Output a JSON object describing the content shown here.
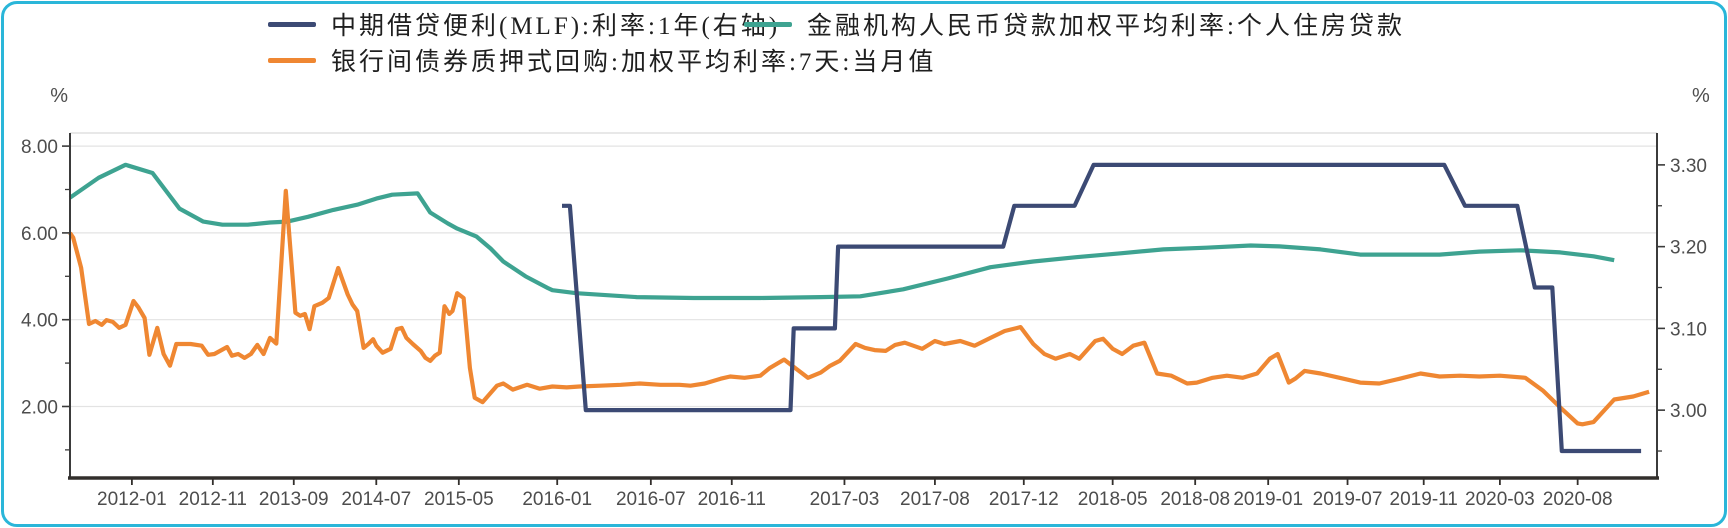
{
  "frame": {
    "border_color": "#2ab6d9",
    "background": "#ffffff"
  },
  "legend": {
    "items": [
      {
        "id": "mlf",
        "label": "中期借贷便利(MLF):利率:1年(右轴)",
        "color": "#3c4a74"
      },
      {
        "id": "mortgage",
        "label": "金融机构人民币贷款加权平均利率:个人住房贷款",
        "color": "#3ea391"
      },
      {
        "id": "repo",
        "label": "银行间债券质押式回购:加权平均利率:7天:当月值",
        "color": "#ef8732"
      }
    ]
  },
  "chart_data": {
    "type": "line",
    "title": "",
    "grid": true,
    "legend_position": "top",
    "left_axis": {
      "unit": "%",
      "tick_labels": [
        "8.00",
        "6.00",
        "4.00",
        "2.00"
      ],
      "tick_values": [
        8,
        6,
        4,
        2
      ],
      "minor_tick_values": [
        7,
        5,
        3,
        1
      ],
      "range_top_to_bottom": [
        8.302,
        0.352
      ]
    },
    "right_axis": {
      "unit": "%",
      "tick_labels": [
        "3.30",
        "3.20",
        "3.10",
        "3.00"
      ],
      "tick_values": [
        3.3,
        3.2,
        3.1,
        3.0
      ],
      "minor_tick_values": [
        3.25,
        3.15,
        3.05,
        2.95
      ],
      "range_top_to_bottom": [
        3.339,
        2.917
      ]
    },
    "x_axis": {
      "ticks": [
        {
          "label": "2012-01",
          "pos": 0.039
        },
        {
          "label": "2012-11",
          "pos": 0.09
        },
        {
          "label": "2013-09",
          "pos": 0.141
        },
        {
          "label": "2014-07",
          "pos": 0.193
        },
        {
          "label": "2015-05",
          "pos": 0.245
        },
        {
          "label": "2016-01",
          "pos": 0.307
        },
        {
          "label": "2016-07",
          "pos": 0.366
        },
        {
          "label": "2016-11",
          "pos": 0.417
        },
        {
          "label": "2017-03",
          "pos": 0.488
        },
        {
          "label": "2017-08",
          "pos": 0.545
        },
        {
          "label": "2017-12",
          "pos": 0.601
        },
        {
          "label": "2018-05",
          "pos": 0.657
        },
        {
          "label": "2018-08",
          "pos": 0.709
        },
        {
          "label": "2019-01",
          "pos": 0.755
        },
        {
          "label": "2019-07",
          "pos": 0.805
        },
        {
          "label": "2019-11",
          "pos": 0.853
        },
        {
          "label": "2020-03",
          "pos": 0.901
        },
        {
          "label": "2020-08",
          "pos": 0.95
        }
      ]
    },
    "series": [
      {
        "name": "金融机构人民币贷款加权平均利率:个人住房贷款",
        "axis": "left",
        "color": "#3ea391",
        "points": [
          [
            0.0,
            6.81
          ],
          [
            0.018,
            7.27
          ],
          [
            0.035,
            7.57
          ],
          [
            0.052,
            7.38
          ],
          [
            0.069,
            6.56
          ],
          [
            0.084,
            6.26
          ],
          [
            0.096,
            6.19
          ],
          [
            0.112,
            6.19
          ],
          [
            0.126,
            6.24
          ],
          [
            0.137,
            6.26
          ],
          [
            0.15,
            6.37
          ],
          [
            0.166,
            6.53
          ],
          [
            0.181,
            6.65
          ],
          [
            0.193,
            6.79
          ],
          [
            0.203,
            6.88
          ],
          [
            0.219,
            6.91
          ],
          [
            0.227,
            6.47
          ],
          [
            0.238,
            6.22
          ],
          [
            0.244,
            6.1
          ],
          [
            0.256,
            5.92
          ],
          [
            0.265,
            5.64
          ],
          [
            0.273,
            5.34
          ],
          [
            0.287,
            5.0
          ],
          [
            0.301,
            4.73
          ],
          [
            0.304,
            4.68
          ],
          [
            0.319,
            4.61
          ],
          [
            0.357,
            4.52
          ],
          [
            0.393,
            4.5
          ],
          [
            0.435,
            4.5
          ],
          [
            0.473,
            4.52
          ],
          [
            0.498,
            4.54
          ],
          [
            0.525,
            4.7
          ],
          [
            0.553,
            4.95
          ],
          [
            0.58,
            5.21
          ],
          [
            0.607,
            5.34
          ],
          [
            0.634,
            5.44
          ],
          [
            0.662,
            5.53
          ],
          [
            0.689,
            5.62
          ],
          [
            0.716,
            5.66
          ],
          [
            0.744,
            5.71
          ],
          [
            0.762,
            5.69
          ],
          [
            0.788,
            5.62
          ],
          [
            0.813,
            5.5
          ],
          [
            0.838,
            5.5
          ],
          [
            0.863,
            5.5
          ],
          [
            0.888,
            5.57
          ],
          [
            0.914,
            5.6
          ],
          [
            0.939,
            5.55
          ],
          [
            0.96,
            5.46
          ],
          [
            0.973,
            5.37
          ]
        ]
      },
      {
        "name": "银行间债券质押式回购:加权平均利率:7天:当月值",
        "axis": "left",
        "color": "#ef8732",
        "points": [
          [
            0.0,
            6.0
          ],
          [
            0.002,
            5.89
          ],
          [
            0.007,
            5.2
          ],
          [
            0.012,
            3.9
          ],
          [
            0.016,
            3.97
          ],
          [
            0.02,
            3.88
          ],
          [
            0.023,
            3.99
          ],
          [
            0.027,
            3.95
          ],
          [
            0.031,
            3.81
          ],
          [
            0.035,
            3.88
          ],
          [
            0.04,
            4.43
          ],
          [
            0.043,
            4.29
          ],
          [
            0.047,
            4.04
          ],
          [
            0.05,
            3.19
          ],
          [
            0.055,
            3.81
          ],
          [
            0.059,
            3.21
          ],
          [
            0.063,
            2.94
          ],
          [
            0.067,
            3.44
          ],
          [
            0.076,
            3.44
          ],
          [
            0.083,
            3.4
          ],
          [
            0.087,
            3.19
          ],
          [
            0.091,
            3.21
          ],
          [
            0.099,
            3.37
          ],
          [
            0.102,
            3.17
          ],
          [
            0.106,
            3.21
          ],
          [
            0.11,
            3.12
          ],
          [
            0.114,
            3.21
          ],
          [
            0.118,
            3.42
          ],
          [
            0.122,
            3.21
          ],
          [
            0.126,
            3.58
          ],
          [
            0.13,
            3.45
          ],
          [
            0.136,
            6.97
          ],
          [
            0.142,
            4.16
          ],
          [
            0.145,
            4.09
          ],
          [
            0.148,
            4.13
          ],
          [
            0.151,
            3.78
          ],
          [
            0.154,
            4.31
          ],
          [
            0.159,
            4.39
          ],
          [
            0.163,
            4.5
          ],
          [
            0.169,
            5.19
          ],
          [
            0.175,
            4.58
          ],
          [
            0.178,
            4.35
          ],
          [
            0.181,
            4.2
          ],
          [
            0.185,
            3.35
          ],
          [
            0.188,
            3.44
          ],
          [
            0.191,
            3.55
          ],
          [
            0.193,
            3.4
          ],
          [
            0.197,
            3.24
          ],
          [
            0.202,
            3.33
          ],
          [
            0.206,
            3.78
          ],
          [
            0.209,
            3.81
          ],
          [
            0.212,
            3.58
          ],
          [
            0.216,
            3.44
          ],
          [
            0.221,
            3.28
          ],
          [
            0.224,
            3.12
          ],
          [
            0.227,
            3.05
          ],
          [
            0.23,
            3.17
          ],
          [
            0.233,
            3.24
          ],
          [
            0.236,
            4.31
          ],
          [
            0.239,
            4.13
          ],
          [
            0.241,
            4.2
          ],
          [
            0.244,
            4.61
          ],
          [
            0.248,
            4.5
          ],
          [
            0.252,
            2.89
          ],
          [
            0.255,
            2.2
          ],
          [
            0.26,
            2.1
          ],
          [
            0.269,
            2.48
          ],
          [
            0.273,
            2.53
          ],
          [
            0.279,
            2.39
          ],
          [
            0.288,
            2.5
          ],
          [
            0.296,
            2.41
          ],
          [
            0.304,
            2.46
          ],
          [
            0.313,
            2.44
          ],
          [
            0.321,
            2.46
          ],
          [
            0.334,
            2.48
          ],
          [
            0.347,
            2.5
          ],
          [
            0.359,
            2.53
          ],
          [
            0.372,
            2.5
          ],
          [
            0.384,
            2.5
          ],
          [
            0.391,
            2.48
          ],
          [
            0.4,
            2.53
          ],
          [
            0.41,
            2.64
          ],
          [
            0.416,
            2.69
          ],
          [
            0.425,
            2.66
          ],
          [
            0.435,
            2.71
          ],
          [
            0.441,
            2.89
          ],
          [
            0.45,
            3.08
          ],
          [
            0.465,
            2.66
          ],
          [
            0.473,
            2.78
          ],
          [
            0.479,
            2.94
          ],
          [
            0.485,
            3.05
          ],
          [
            0.495,
            3.44
          ],
          [
            0.501,
            3.35
          ],
          [
            0.507,
            3.3
          ],
          [
            0.514,
            3.28
          ],
          [
            0.52,
            3.42
          ],
          [
            0.526,
            3.47
          ],
          [
            0.537,
            3.33
          ],
          [
            0.545,
            3.51
          ],
          [
            0.551,
            3.44
          ],
          [
            0.561,
            3.51
          ],
          [
            0.57,
            3.4
          ],
          [
            0.58,
            3.58
          ],
          [
            0.589,
            3.74
          ],
          [
            0.599,
            3.83
          ],
          [
            0.607,
            3.44
          ],
          [
            0.614,
            3.21
          ],
          [
            0.621,
            3.1
          ],
          [
            0.63,
            3.21
          ],
          [
            0.636,
            3.1
          ],
          [
            0.646,
            3.51
          ],
          [
            0.651,
            3.56
          ],
          [
            0.657,
            3.33
          ],
          [
            0.663,
            3.21
          ],
          [
            0.67,
            3.4
          ],
          [
            0.677,
            3.47
          ],
          [
            0.685,
            2.76
          ],
          [
            0.694,
            2.71
          ],
          [
            0.704,
            2.53
          ],
          [
            0.71,
            2.55
          ],
          [
            0.72,
            2.66
          ],
          [
            0.729,
            2.71
          ],
          [
            0.739,
            2.66
          ],
          [
            0.748,
            2.76
          ],
          [
            0.756,
            3.1
          ],
          [
            0.761,
            3.21
          ],
          [
            0.768,
            2.55
          ],
          [
            0.772,
            2.64
          ],
          [
            0.778,
            2.82
          ],
          [
            0.788,
            2.76
          ],
          [
            0.8,
            2.66
          ],
          [
            0.813,
            2.55
          ],
          [
            0.825,
            2.53
          ],
          [
            0.838,
            2.64
          ],
          [
            0.851,
            2.76
          ],
          [
            0.863,
            2.69
          ],
          [
            0.876,
            2.71
          ],
          [
            0.888,
            2.69
          ],
          [
            0.901,
            2.71
          ],
          [
            0.917,
            2.66
          ],
          [
            0.928,
            2.37
          ],
          [
            0.939,
            1.98
          ],
          [
            0.95,
            1.61
          ],
          [
            0.953,
            1.59
          ],
          [
            0.96,
            1.64
          ],
          [
            0.973,
            2.16
          ],
          [
            0.985,
            2.23
          ],
          [
            0.995,
            2.34
          ]
        ]
      },
      {
        "name": "中期借贷便利(MLF):利率:1年(右轴)",
        "axis": "right",
        "color": "#3c4a74",
        "points": [
          [
            0.31,
            3.25
          ],
          [
            0.315,
            3.25
          ],
          [
            0.325,
            3.0
          ],
          [
            0.454,
            3.0
          ],
          [
            0.456,
            3.1
          ],
          [
            0.482,
            3.1
          ],
          [
            0.484,
            3.2
          ],
          [
            0.588,
            3.2
          ],
          [
            0.595,
            3.25
          ],
          [
            0.633,
            3.25
          ],
          [
            0.645,
            3.3
          ],
          [
            0.866,
            3.3
          ],
          [
            0.879,
            3.25
          ],
          [
            0.912,
            3.25
          ],
          [
            0.923,
            3.15
          ],
          [
            0.934,
            3.15
          ],
          [
            0.94,
            2.95
          ],
          [
            0.99,
            2.95
          ]
        ]
      }
    ]
  }
}
